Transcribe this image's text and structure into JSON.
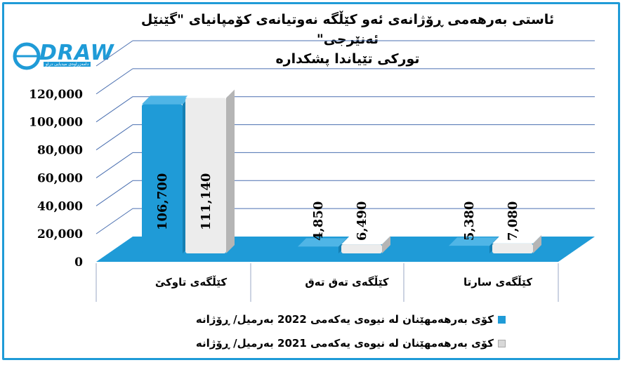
{
  "title_line1": "ئاستی بەرهەمی ڕۆژانەی ئەو کێڵگە نەوتیانەی کۆمپانیای \"گێنێل ئەنێرجی\"",
  "title_line2": "تورکی تێیاندا پشکدارە",
  "logo": {
    "text": "DRAW",
    "subtitle": "دامەزراوەی میدیایی دراو"
  },
  "colors": {
    "series_2022": "#1f9bd7",
    "series_2021": "#e8e8e8",
    "floor": "#1f9bd7",
    "grid": "#4a6fb0",
    "frame": "#1f9bd7"
  },
  "chart_data": {
    "type": "bar",
    "categories": [
      "کێڵگەی تاوکێ",
      "کێڵگەی تەق تەق",
      "کێڵگەی سارتا"
    ],
    "series": [
      {
        "name": "کۆی بەرهەمهێنان لە نیوەی یەکەمی 2022 بەرمیل/ ڕۆژانە",
        "values": [
          106700,
          4850,
          5380
        ],
        "labels": [
          "106,700",
          "4,850",
          "5,380"
        ]
      },
      {
        "name": "کۆی بەرهەمهێنان لە نیوەی یەکەمی 2021 بەرمیل/ ڕۆژانە",
        "values": [
          111140,
          6490,
          7080
        ],
        "labels": [
          "111,140",
          "6,490",
          "7,080"
        ]
      }
    ],
    "yticks": [
      "0",
      "20,000",
      "40,000",
      "60,000",
      "80,000",
      "100,000",
      "120,000"
    ],
    "ylim": [
      0,
      140000
    ],
    "grid": true,
    "legend_position": "bottom"
  }
}
